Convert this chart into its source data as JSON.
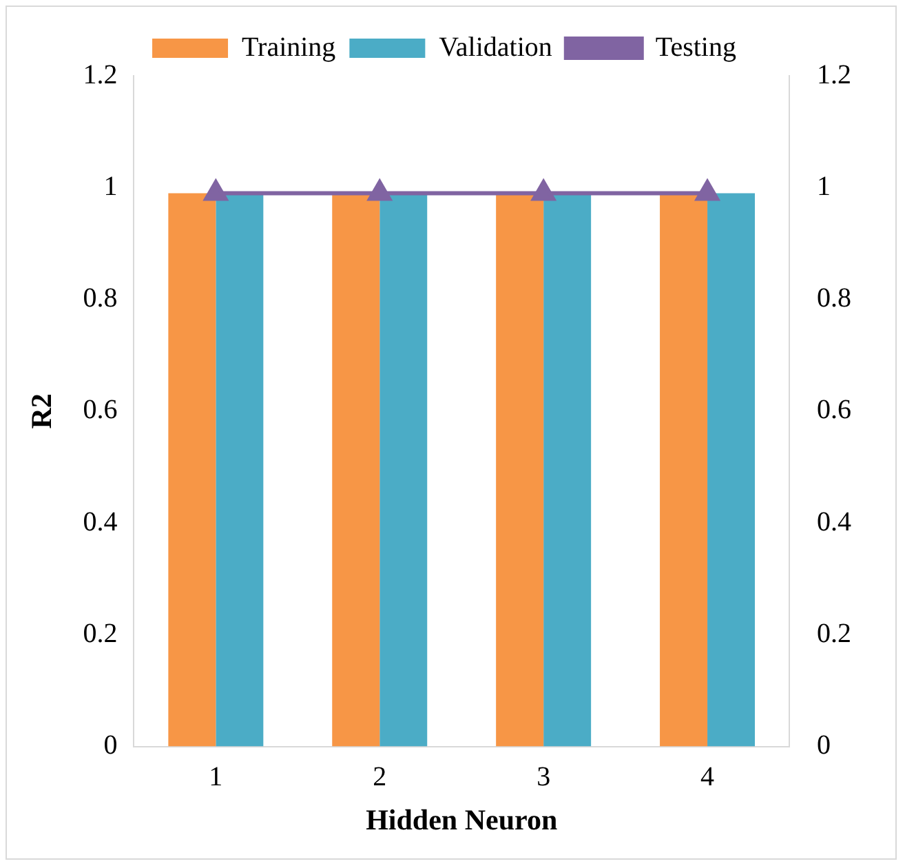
{
  "chart_data": {
    "type": "bar",
    "xlabel": "Hidden Neuron",
    "ylabel": "R2",
    "categories": [
      "1",
      "2",
      "3",
      "4"
    ],
    "series": [
      {
        "name": "Training",
        "color": "#f79646",
        "values": [
          0.99,
          0.99,
          0.99,
          0.99
        ]
      },
      {
        "name": "Validation",
        "color": "#4bacc6",
        "values": [
          0.99,
          0.99,
          0.99,
          0.99
        ]
      },
      {
        "name": "Testing",
        "type": "line",
        "color": "#8064a2",
        "marker": "triangle",
        "values": [
          0.99,
          0.99,
          0.99,
          0.99
        ]
      }
    ],
    "ylim": [
      0,
      1.2
    ],
    "yticks": [
      0,
      0.2,
      0.4,
      0.6,
      0.8,
      1,
      1.2
    ],
    "y2lim": [
      0,
      1.2
    ],
    "y2ticks": [
      0,
      0.2,
      0.4,
      0.6,
      0.8,
      1,
      1.2
    ],
    "grid": false,
    "legend": "top"
  }
}
